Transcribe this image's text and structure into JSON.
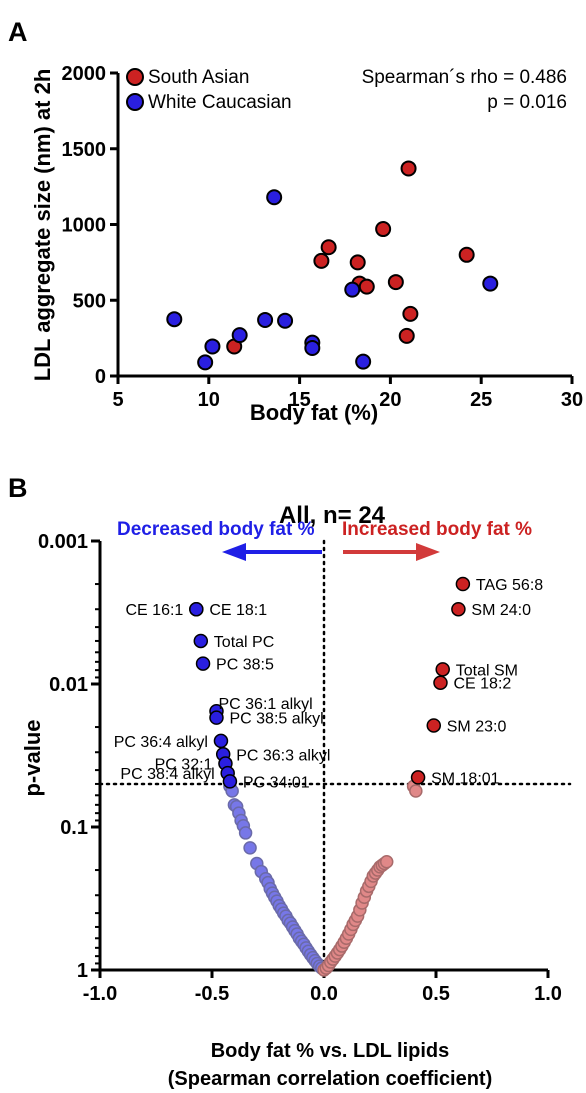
{
  "panels": {
    "a": {
      "letter": "A"
    },
    "b": {
      "letter": "B"
    }
  },
  "colors": {
    "south_asian": "#cc2222",
    "white_caucasian": "#2a1fe0",
    "sig_negative": "#2a1fe0",
    "sig_positive": "#cc2222",
    "nonsig_negative": "#7777e8",
    "nonsig_positive": "#e08888",
    "arrow_left": "#1f1fe6",
    "arrow_right": "#d23a3a"
  },
  "chart_data": [
    {
      "type": "scatter",
      "xlabel": "Body fat (%)",
      "ylabel": "LDL aggregate size (nm) at 2h",
      "xlim": [
        5,
        30
      ],
      "ylim": [
        0,
        2000
      ],
      "xticks": [
        5,
        10,
        15,
        20,
        25,
        30
      ],
      "yticks": [
        0,
        500,
        1000,
        1500,
        2000
      ],
      "grid": false,
      "legend": "top-left",
      "annotation": {
        "line1": "Spearman´s rho = 0.486",
        "line2": "p = 0.016"
      },
      "series": [
        {
          "name": "South Asian",
          "color": "#cc2222",
          "points": [
            [
              11.4,
              195
            ],
            [
              16.2,
              760
            ],
            [
              16.6,
              850
            ],
            [
              18.2,
              750
            ],
            [
              18.3,
              610
            ],
            [
              18.7,
              590
            ],
            [
              19.6,
              970
            ],
            [
              20.3,
              620
            ],
            [
              20.9,
              265
            ],
            [
              21.0,
              1370
            ],
            [
              21.1,
              410
            ],
            [
              24.2,
              800
            ]
          ]
        },
        {
          "name": "White Caucasian",
          "color": "#2a1fe0",
          "points": [
            [
              8.1,
              375
            ],
            [
              9.8,
              90
            ],
            [
              10.2,
              195
            ],
            [
              11.7,
              270
            ],
            [
              13.1,
              370
            ],
            [
              13.6,
              1180
            ],
            [
              14.2,
              365
            ],
            [
              15.7,
              220
            ],
            [
              15.7,
              185
            ],
            [
              17.9,
              570
            ],
            [
              18.5,
              95
            ],
            [
              25.5,
              610
            ]
          ]
        }
      ]
    },
    {
      "type": "scatter",
      "title": "All, n= 24",
      "xlabel_line1": "Body fat % vs. LDL lipids",
      "xlabel_line2": "(Spearman correlation coefficient)",
      "ylabel": "p-value",
      "xlim": [
        -1.0,
        1.0
      ],
      "xticks": [
        "-1.0",
        "-0.5",
        "0.0",
        "0.5",
        "1.0"
      ],
      "y_scale": "log, reversed",
      "ylim": [
        1,
        0.001
      ],
      "yticks": [
        "0.001",
        "0.01",
        "0.1",
        "1"
      ],
      "threshold_p": 0.05,
      "arrow_left_label": "Decreased body fat  %",
      "arrow_right_label": "Increased body fat  %",
      "labeled_points": [
        {
          "label": "CE 16:1",
          "r": -0.57,
          "p": 0.003,
          "side": "left"
        },
        {
          "label": "CE 18:1",
          "r": -0.57,
          "p": 0.003,
          "side": "right"
        },
        {
          "label": "Total PC",
          "r": -0.55,
          "p": 0.005,
          "side": "right"
        },
        {
          "label": "PC 38:5",
          "r": -0.54,
          "p": 0.0072,
          "side": "right"
        },
        {
          "label": "PC 36:1 alkyl",
          "r": -0.48,
          "p": 0.0155,
          "side": "right-up"
        },
        {
          "label": "PC 38:5 alkyl",
          "r": -0.48,
          "p": 0.0172,
          "side": "right"
        },
        {
          "label": "PC 36:4 alkyl",
          "r": -0.46,
          "p": 0.025,
          "side": "left"
        },
        {
          "label": "PC 36:3 alkyl",
          "r": -0.45,
          "p": 0.031,
          "side": "right"
        },
        {
          "label": "PC 32:1",
          "r": -0.44,
          "p": 0.036,
          "side": "left"
        },
        {
          "label": "PC 38:4 alkyl",
          "r": -0.43,
          "p": 0.042,
          "side": "left"
        },
        {
          "label": "PC 34:01",
          "r": -0.42,
          "p": 0.048,
          "side": "right"
        },
        {
          "label": "TAG 56:8",
          "r": 0.62,
          "p": 0.002,
          "side": "right"
        },
        {
          "label": "SM 24:0",
          "r": 0.6,
          "p": 0.003,
          "side": "right"
        },
        {
          "label": "Total SM",
          "r": 0.53,
          "p": 0.0079,
          "side": "right"
        },
        {
          "label": "CE 18:2",
          "r": 0.52,
          "p": 0.0098,
          "side": "right"
        },
        {
          "label": "SM 23:0",
          "r": 0.49,
          "p": 0.0195,
          "side": "right"
        },
        {
          "label": "SM 18:01",
          "r": 0.42,
          "p": 0.045,
          "side": "right"
        }
      ],
      "nonsig_points": [
        [
          -0.42,
          0.052
        ],
        [
          -0.41,
          0.056
        ],
        [
          -0.4,
          0.07
        ],
        [
          -0.39,
          0.072
        ],
        [
          -0.38,
          0.08
        ],
        [
          -0.37,
          0.09
        ],
        [
          -0.36,
          0.098
        ],
        [
          -0.35,
          0.11
        ],
        [
          -0.33,
          0.14
        ],
        [
          -0.3,
          0.18
        ],
        [
          -0.28,
          0.205
        ],
        [
          -0.26,
          0.23
        ],
        [
          -0.25,
          0.245
        ],
        [
          -0.24,
          0.27
        ],
        [
          -0.23,
          0.29
        ],
        [
          -0.22,
          0.31
        ],
        [
          -0.21,
          0.33
        ],
        [
          -0.2,
          0.355
        ],
        [
          -0.19,
          0.375
        ],
        [
          -0.18,
          0.4
        ],
        [
          -0.17,
          0.42
        ],
        [
          -0.16,
          0.45
        ],
        [
          -0.15,
          0.47
        ],
        [
          -0.14,
          0.5
        ],
        [
          -0.13,
          0.53
        ],
        [
          -0.12,
          0.56
        ],
        [
          -0.11,
          0.6
        ],
        [
          -0.1,
          0.63
        ],
        [
          -0.09,
          0.66
        ],
        [
          -0.08,
          0.7
        ],
        [
          -0.07,
          0.74
        ],
        [
          -0.06,
          0.78
        ],
        [
          -0.05,
          0.82
        ],
        [
          -0.04,
          0.86
        ],
        [
          -0.03,
          0.9
        ],
        [
          -0.02,
          0.94
        ],
        [
          -0.01,
          0.97
        ],
        [
          0.0,
          1.0
        ],
        [
          0.01,
          0.97
        ],
        [
          0.02,
          0.93
        ],
        [
          0.03,
          0.88
        ],
        [
          0.04,
          0.84
        ],
        [
          0.05,
          0.8
        ],
        [
          0.06,
          0.76
        ],
        [
          0.07,
          0.72
        ],
        [
          0.08,
          0.68
        ],
        [
          0.09,
          0.64
        ],
        [
          0.1,
          0.6
        ],
        [
          0.11,
          0.56
        ],
        [
          0.12,
          0.52
        ],
        [
          0.13,
          0.48
        ],
        [
          0.14,
          0.45
        ],
        [
          0.15,
          0.42
        ],
        [
          0.16,
          0.38
        ],
        [
          0.17,
          0.34
        ],
        [
          0.18,
          0.31
        ],
        [
          0.19,
          0.28
        ],
        [
          0.2,
          0.26
        ],
        [
          0.21,
          0.24
        ],
        [
          0.22,
          0.22
        ],
        [
          0.23,
          0.21
        ],
        [
          0.24,
          0.2
        ],
        [
          0.25,
          0.19
        ],
        [
          0.26,
          0.185
        ],
        [
          0.27,
          0.18
        ],
        [
          0.28,
          0.175
        ],
        [
          0.4,
          0.052
        ],
        [
          0.41,
          0.056
        ]
      ]
    }
  ]
}
